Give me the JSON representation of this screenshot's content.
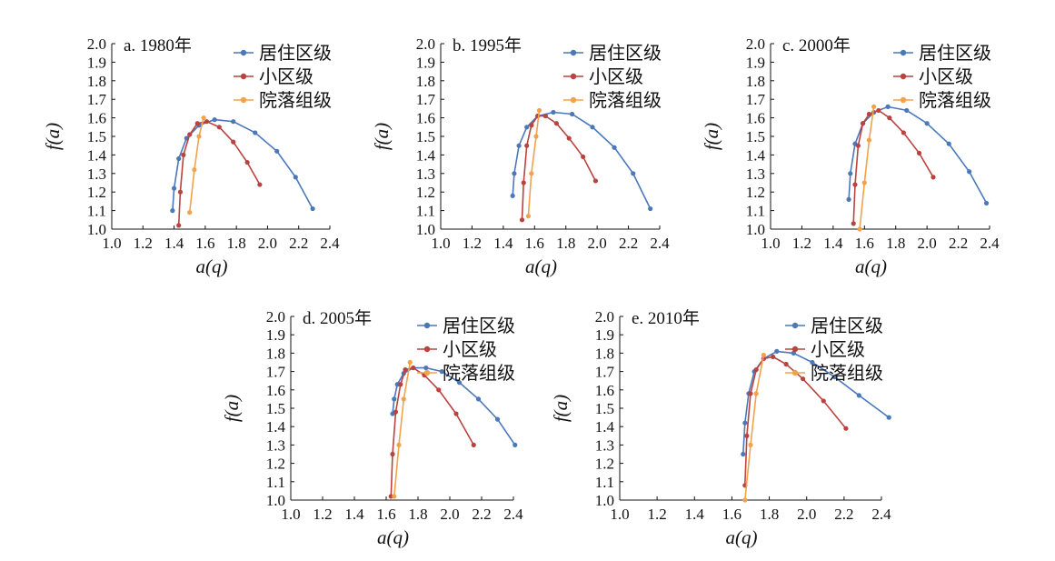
{
  "colors": {
    "居住区级": "#4a78b9",
    "小区级": "#b9433f",
    "院落组级": "#f2a24b",
    "axis": "#111111"
  },
  "chart_data": [
    {
      "type": "scatter",
      "panel_label": "a. 1980年",
      "xlabel": "a(q)",
      "ylabel": "f(a)",
      "xlim": [
        1.0,
        2.4
      ],
      "ylim": [
        1.0,
        2.0
      ],
      "xticks": [
        "1.0",
        "1.2",
        "1.4",
        "1.6",
        "1.8",
        "2.0",
        "2.2",
        "2.4"
      ],
      "yticks": [
        "1.0",
        "1.1",
        "1.2",
        "1.3",
        "1.4",
        "1.5",
        "1.6",
        "1.7",
        "1.8",
        "1.9",
        "2.0"
      ],
      "legend": [
        "居住区级",
        "小区级",
        "院落组级"
      ],
      "legend_position": "top-right",
      "series": [
        {
          "name": "居住区级",
          "x": [
            1.39,
            1.4,
            1.43,
            1.48,
            1.56,
            1.66,
            1.78,
            1.92,
            2.06,
            2.18,
            2.29
          ],
          "y": [
            1.1,
            1.22,
            1.38,
            1.49,
            1.56,
            1.59,
            1.58,
            1.52,
            1.42,
            1.28,
            1.11
          ]
        },
        {
          "name": "小区级",
          "x": [
            1.43,
            1.44,
            1.46,
            1.5,
            1.55,
            1.61,
            1.69,
            1.78,
            1.87,
            1.95
          ],
          "y": [
            1.02,
            1.2,
            1.4,
            1.51,
            1.57,
            1.58,
            1.55,
            1.47,
            1.36,
            1.24
          ]
        },
        {
          "name": "院落组级",
          "x": [
            1.5,
            1.53,
            1.56,
            1.59
          ],
          "y": [
            1.09,
            1.32,
            1.5,
            1.6
          ]
        }
      ]
    },
    {
      "type": "scatter",
      "panel_label": "b. 1995年",
      "xlabel": "a(q)",
      "ylabel": "f(a)",
      "xlim": [
        1.0,
        2.4
      ],
      "ylim": [
        1.0,
        2.0
      ],
      "xticks": [
        "1.0",
        "1.2",
        "1.4",
        "1.6",
        "1.8",
        "2.0",
        "2.2",
        "2.4"
      ],
      "yticks": [
        "1.0",
        "1.1",
        "1.2",
        "1.3",
        "1.4",
        "1.5",
        "1.6",
        "1.7",
        "1.8",
        "1.9",
        "2.0"
      ],
      "legend": [
        "居住区级",
        "小区级",
        "院落组级"
      ],
      "legend_position": "top-right",
      "series": [
        {
          "name": "居住区级",
          "x": [
            1.46,
            1.47,
            1.5,
            1.55,
            1.62,
            1.72,
            1.84,
            1.97,
            2.11,
            2.23,
            2.34
          ],
          "y": [
            1.18,
            1.3,
            1.45,
            1.55,
            1.61,
            1.63,
            1.62,
            1.55,
            1.44,
            1.3,
            1.11
          ]
        },
        {
          "name": "小区级",
          "x": [
            1.52,
            1.53,
            1.55,
            1.58,
            1.62,
            1.67,
            1.74,
            1.82,
            1.91,
            1.99
          ],
          "y": [
            1.05,
            1.25,
            1.45,
            1.56,
            1.61,
            1.61,
            1.57,
            1.49,
            1.39,
            1.26
          ]
        },
        {
          "name": "院落组级",
          "x": [
            1.56,
            1.58,
            1.61,
            1.63
          ],
          "y": [
            1.07,
            1.3,
            1.5,
            1.64
          ]
        }
      ]
    },
    {
      "type": "scatter",
      "panel_label": "c. 2000年",
      "xlabel": "a(q)",
      "ylabel": "f(a)",
      "xlim": [
        1.0,
        2.4
      ],
      "ylim": [
        1.0,
        2.0
      ],
      "xticks": [
        "1.0",
        "1.2",
        "1.4",
        "1.6",
        "1.8",
        "2.0",
        "2.2",
        "2.4"
      ],
      "yticks": [
        "1.0",
        "1.1",
        "1.2",
        "1.3",
        "1.4",
        "1.5",
        "1.6",
        "1.7",
        "1.8",
        "1.9",
        "2.0"
      ],
      "legend": [
        "居住区级",
        "小区级",
        "院落组级"
      ],
      "legend_position": "top-right",
      "series": [
        {
          "name": "居住区级",
          "x": [
            1.5,
            1.51,
            1.54,
            1.59,
            1.66,
            1.75,
            1.87,
            2.0,
            2.14,
            2.27,
            2.38
          ],
          "y": [
            1.16,
            1.3,
            1.46,
            1.57,
            1.63,
            1.66,
            1.64,
            1.57,
            1.46,
            1.31,
            1.14
          ]
        },
        {
          "name": "小区级",
          "x": [
            1.53,
            1.54,
            1.56,
            1.59,
            1.63,
            1.69,
            1.76,
            1.85,
            1.95,
            2.04
          ],
          "y": [
            1.03,
            1.24,
            1.45,
            1.57,
            1.62,
            1.64,
            1.6,
            1.52,
            1.41,
            1.28
          ]
        },
        {
          "name": "院落组级",
          "x": [
            1.57,
            1.6,
            1.63,
            1.66
          ],
          "y": [
            1.0,
            1.25,
            1.48,
            1.66
          ]
        }
      ]
    },
    {
      "type": "scatter",
      "panel_label": "d. 2005年",
      "xlabel": "a(q)",
      "ylabel": "f(a)",
      "xlim": [
        1.0,
        2.4
      ],
      "ylim": [
        1.0,
        2.0
      ],
      "xticks": [
        "1.0",
        "1.2",
        "1.4",
        "1.6",
        "1.8",
        "2.0",
        "2.2",
        "2.4"
      ],
      "yticks": [
        "1.0",
        "1.1",
        "1.2",
        "1.3",
        "1.4",
        "1.5",
        "1.6",
        "1.7",
        "1.8",
        "1.9",
        "2.0"
      ],
      "legend": [
        "居住区级",
        "小区级",
        "院落组级"
      ],
      "legend_position": "top-right",
      "series": [
        {
          "name": "居住区级",
          "x": [
            1.64,
            1.65,
            1.67,
            1.71,
            1.77,
            1.85,
            1.95,
            2.06,
            2.18,
            2.3,
            2.41
          ],
          "y": [
            1.47,
            1.55,
            1.63,
            1.69,
            1.72,
            1.72,
            1.7,
            1.64,
            1.55,
            1.44,
            1.3
          ]
        },
        {
          "name": "小区级",
          "x": [
            1.63,
            1.64,
            1.66,
            1.69,
            1.72,
            1.77,
            1.84,
            1.93,
            2.04,
            2.15
          ],
          "y": [
            1.02,
            1.25,
            1.48,
            1.63,
            1.71,
            1.72,
            1.68,
            1.6,
            1.47,
            1.3
          ]
        },
        {
          "name": "院落组级",
          "x": [
            1.65,
            1.68,
            1.71,
            1.75
          ],
          "y": [
            1.02,
            1.3,
            1.55,
            1.75
          ]
        }
      ]
    },
    {
      "type": "scatter",
      "panel_label": "e. 2010年",
      "xlabel": "a(q)",
      "ylabel": "f(a)",
      "xlim": [
        1.0,
        2.4
      ],
      "ylim": [
        1.0,
        2.0
      ],
      "xticks": [
        "1.0",
        "1.2",
        "1.4",
        "1.6",
        "1.8",
        "2.0",
        "2.2",
        "2.4"
      ],
      "yticks": [
        "1.0",
        "1.1",
        "1.2",
        "1.3",
        "1.4",
        "1.5",
        "1.6",
        "1.7",
        "1.8",
        "1.9",
        "2.0"
      ],
      "legend": [
        "居住区级",
        "小区级",
        "院落组级"
      ],
      "legend_position": "top-right",
      "series": [
        {
          "name": "居住区级",
          "x": [
            1.66,
            1.67,
            1.69,
            1.72,
            1.77,
            1.84,
            1.93,
            2.03,
            2.15,
            2.28,
            2.44
          ],
          "y": [
            1.25,
            1.42,
            1.58,
            1.7,
            1.77,
            1.81,
            1.8,
            1.75,
            1.67,
            1.57,
            1.45
          ]
        },
        {
          "name": "小区级",
          "x": [
            1.67,
            1.68,
            1.7,
            1.73,
            1.77,
            1.82,
            1.89,
            1.98,
            2.09,
            2.21
          ],
          "y": [
            1.08,
            1.35,
            1.58,
            1.71,
            1.77,
            1.78,
            1.74,
            1.66,
            1.54,
            1.39
          ]
        },
        {
          "name": "院落组级",
          "x": [
            1.67,
            1.7,
            1.73,
            1.77
          ],
          "y": [
            1.0,
            1.3,
            1.58,
            1.79
          ]
        }
      ]
    }
  ]
}
